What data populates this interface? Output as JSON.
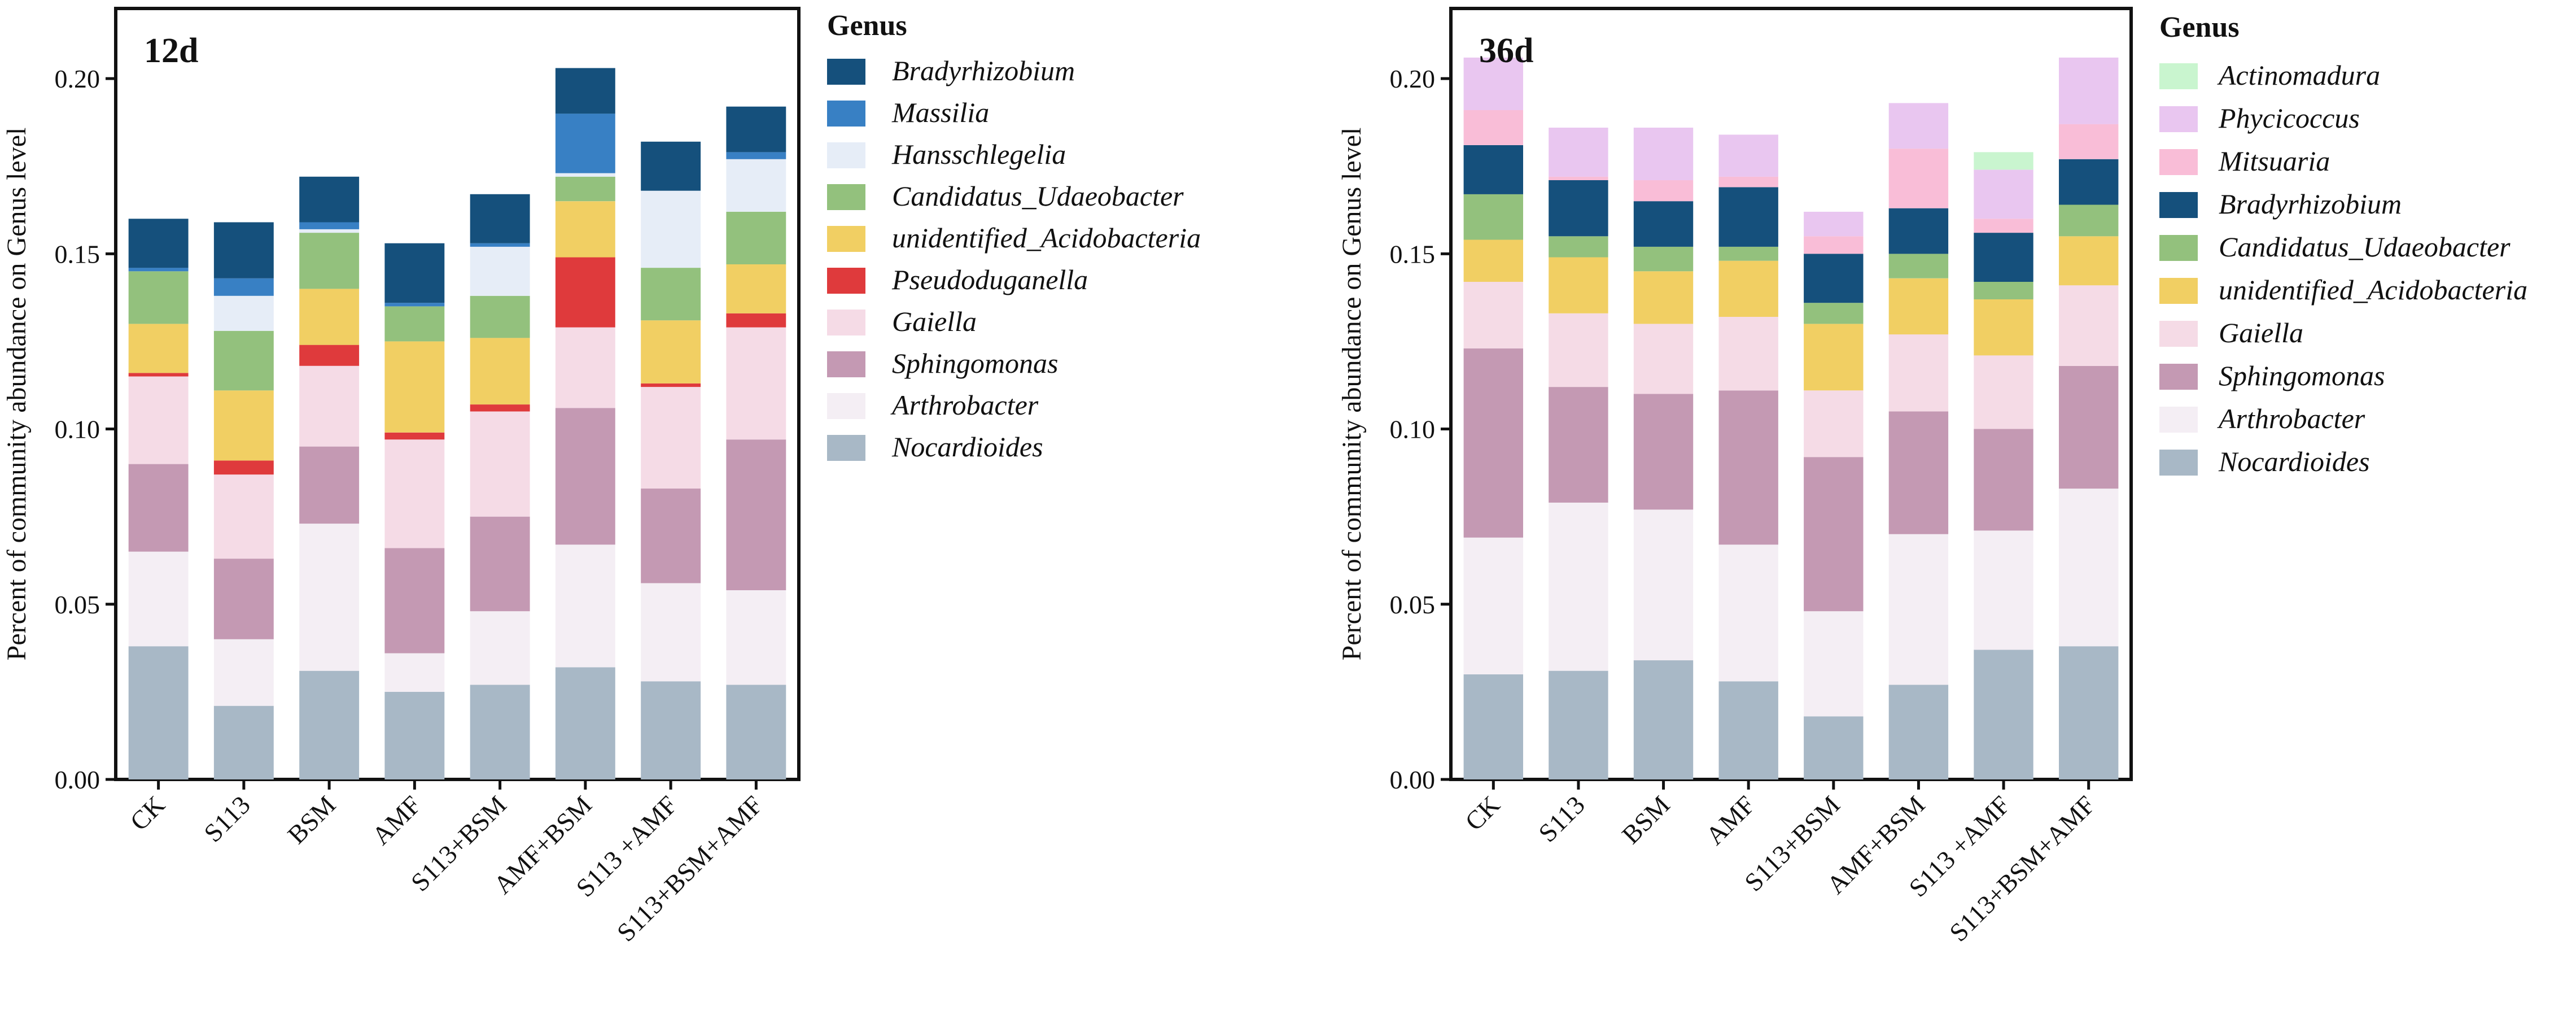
{
  "figure": {
    "description_free": true
  },
  "chart_data": [
    {
      "type": "bar",
      "stacked": true,
      "panel_label": "12d",
      "ylabel": "Percent of community abundance on Genus level",
      "xlabel": "",
      "ylim": [
        0,
        0.22
      ],
      "yticks": [
        0.0,
        0.05,
        0.1,
        0.15,
        0.2
      ],
      "ytick_labels": [
        "0.00",
        "0.05",
        "0.10",
        "0.15",
        "0.20"
      ],
      "legend_title": "Genus",
      "legend_position": "right",
      "categories": [
        "CK",
        "S113",
        "BSM",
        "AMF",
        "S113+BSM",
        "AMF+BSM",
        "S113 +AMF",
        "S113+BSM+AMF"
      ],
      "series": [
        {
          "name": "Nocardioides",
          "color": "#a8b8c6",
          "values": [
            0.038,
            0.021,
            0.031,
            0.025,
            0.027,
            0.032,
            0.028,
            0.027
          ]
        },
        {
          "name": "Arthrobacter",
          "color": "#f4eef4",
          "values": [
            0.027,
            0.019,
            0.042,
            0.011,
            0.021,
            0.035,
            0.028,
            0.027
          ]
        },
        {
          "name": "Sphingomonas",
          "color": "#c499b3",
          "values": [
            0.025,
            0.023,
            0.022,
            0.03,
            0.027,
            0.039,
            0.027,
            0.043
          ]
        },
        {
          "name": "Gaiella",
          "color": "#f5dbe6",
          "values": [
            0.025,
            0.024,
            0.023,
            0.031,
            0.03,
            0.023,
            0.029,
            0.032
          ]
        },
        {
          "name": "Pseudoduganella",
          "color": "#df3a3c",
          "values": [
            0.001,
            0.004,
            0.006,
            0.002,
            0.002,
            0.02,
            0.001,
            0.004
          ]
        },
        {
          "name": "unidentified_Acidobacteria",
          "color": "#f1cf63",
          "values": [
            0.014,
            0.02,
            0.016,
            0.026,
            0.019,
            0.016,
            0.018,
            0.014
          ]
        },
        {
          "name": "Candidatus_Udaeobacter",
          "color": "#93c17d",
          "values": [
            0.015,
            0.017,
            0.016,
            0.01,
            0.012,
            0.007,
            0.015,
            0.015
          ]
        },
        {
          "name": "Hansschlegelia",
          "color": "#e6edf7",
          "values": [
            0.0,
            0.01,
            0.001,
            0.0,
            0.014,
            0.001,
            0.022,
            0.015
          ]
        },
        {
          "name": "Massilia",
          "color": "#3880c4",
          "values": [
            0.001,
            0.005,
            0.002,
            0.001,
            0.001,
            0.017,
            0.0,
            0.002
          ]
        },
        {
          "name": "Bradyrhizobium",
          "color": "#15507c",
          "values": [
            0.014,
            0.016,
            0.013,
            0.017,
            0.014,
            0.013,
            0.014,
            0.013
          ]
        }
      ]
    },
    {
      "type": "bar",
      "stacked": true,
      "panel_label": "36d",
      "ylabel": "Percent of community abundance on Genus level",
      "xlabel": "",
      "ylim": [
        0,
        0.22
      ],
      "yticks": [
        0.0,
        0.05,
        0.1,
        0.15,
        0.2
      ],
      "ytick_labels": [
        "0.00",
        "0.05",
        "0.10",
        "0.15",
        "0.20"
      ],
      "legend_title": "Genus",
      "legend_position": "right",
      "categories": [
        "CK",
        "S113",
        "BSM",
        "AMF",
        "S113+BSM",
        "AMF+BSM",
        "S113 +AMF",
        "S113+BSM+AMF"
      ],
      "series": [
        {
          "name": "Nocardioides",
          "color": "#a8b8c6",
          "values": [
            0.03,
            0.031,
            0.034,
            0.028,
            0.018,
            0.027,
            0.037,
            0.038
          ]
        },
        {
          "name": "Arthrobacter",
          "color": "#f4eef4",
          "values": [
            0.039,
            0.048,
            0.043,
            0.039,
            0.03,
            0.043,
            0.034,
            0.045
          ]
        },
        {
          "name": "Sphingomonas",
          "color": "#c499b3",
          "values": [
            0.054,
            0.033,
            0.033,
            0.044,
            0.044,
            0.035,
            0.029,
            0.035
          ]
        },
        {
          "name": "Gaiella",
          "color": "#f5dbe6",
          "values": [
            0.019,
            0.021,
            0.02,
            0.021,
            0.019,
            0.022,
            0.021,
            0.023
          ]
        },
        {
          "name": "unidentified_Acidobacteria",
          "color": "#f1cf63",
          "values": [
            0.012,
            0.016,
            0.015,
            0.016,
            0.019,
            0.016,
            0.016,
            0.014
          ]
        },
        {
          "name": "Candidatus_Udaeobacter",
          "color": "#93c17d",
          "values": [
            0.013,
            0.006,
            0.007,
            0.004,
            0.006,
            0.007,
            0.005,
            0.009
          ]
        },
        {
          "name": "Bradyrhizobium",
          "color": "#15507c",
          "values": [
            0.014,
            0.016,
            0.013,
            0.017,
            0.014,
            0.013,
            0.014,
            0.013
          ]
        },
        {
          "name": "Mitsuaria",
          "color": "#f9bdd7",
          "values": [
            0.01,
            0.001,
            0.006,
            0.003,
            0.005,
            0.017,
            0.004,
            0.01
          ]
        },
        {
          "name": "Phycicoccus",
          "color": "#e9c6f0",
          "values": [
            0.015,
            0.014,
            0.015,
            0.012,
            0.007,
            0.013,
            0.014,
            0.019
          ]
        },
        {
          "name": "Actinomadura",
          "color": "#c9f5cf",
          "values": [
            0.0,
            0.0,
            0.0,
            0.0,
            0.0,
            0.0,
            0.005,
            0.0
          ]
        }
      ]
    }
  ]
}
